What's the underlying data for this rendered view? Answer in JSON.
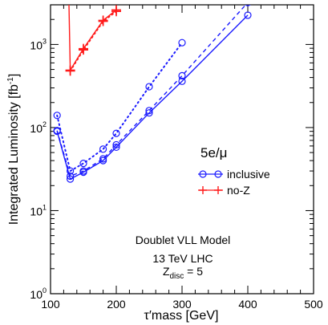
{
  "chart_data": {
    "type": "line",
    "xlabel": "τ′mass  [GeV]",
    "ylabel": "Integrated Luminosity [fb",
    "ylabel_sup": "-1",
    "ylabel_close": "]",
    "xlim": [
      100,
      500
    ],
    "ylim": [
      1,
      3000
    ],
    "yscale": "log",
    "x_ticks": [
      100,
      200,
      300,
      400,
      500
    ],
    "x_tick_labels": [
      "100",
      "200",
      "300",
      "400",
      "500"
    ],
    "y_ticks": [
      1,
      10,
      100,
      1000
    ],
    "y_tick_labels": [
      {
        "base": "10",
        "exp": "0"
      },
      {
        "base": "10",
        "exp": "1"
      },
      {
        "base": "10",
        "exp": "2"
      },
      {
        "base": "10",
        "exp": "3"
      }
    ],
    "grid": false,
    "legend_title": "5e/μ",
    "legend_position": "right-middle",
    "legend": [
      {
        "label": "inclusive",
        "color": "#1a1aff",
        "marker": "circle"
      },
      {
        "label": "no-Z",
        "color": "#ff1a1a",
        "marker": "plus"
      }
    ],
    "annotations": {
      "line1": "Doublet VLL Model",
      "line2": "13 TeV LHC",
      "line3_main": "Z",
      "line3_sub": "disc",
      "line3_tail": " = 5"
    },
    "series": [
      {
        "color": "#1a1aff",
        "style": "solid",
        "marker": "circle",
        "x": [
          110,
          130,
          150,
          180,
          200,
          250,
          300,
          400
        ],
        "y": [
          90,
          24,
          29,
          40,
          58,
          150,
          360,
          2250
        ]
      },
      {
        "color": "#1a1aff",
        "style": "dashed",
        "marker": "circle",
        "x": [
          110,
          130,
          150,
          180,
          200,
          250,
          300,
          400
        ],
        "y": [
          92,
          26,
          30,
          42,
          62,
          160,
          420,
          3200
        ]
      },
      {
        "color": "#1a1aff",
        "style": "dotted",
        "marker": "circle",
        "x": [
          110,
          130,
          150,
          180,
          200,
          250,
          300
        ],
        "y": [
          140,
          30,
          37,
          55,
          85,
          310,
          1050
        ]
      },
      {
        "color": "#ff1a1a",
        "style": "solid",
        "marker": "plus",
        "x": [
          130,
          150,
          180,
          200
        ],
        "y": [
          490,
          890,
          1950,
          2600
        ]
      },
      {
        "color": "#ff1a1a",
        "style": "dotted",
        "marker": "plus",
        "x": [
          130,
          150,
          180,
          200
        ],
        "y": [
          480,
          860,
          1900,
          2500
        ]
      },
      {
        "color": "#ff1a1a",
        "style": "solid",
        "marker": "none",
        "x": [
          130,
          128
        ],
        "y": [
          490,
          3000
        ]
      }
    ]
  }
}
